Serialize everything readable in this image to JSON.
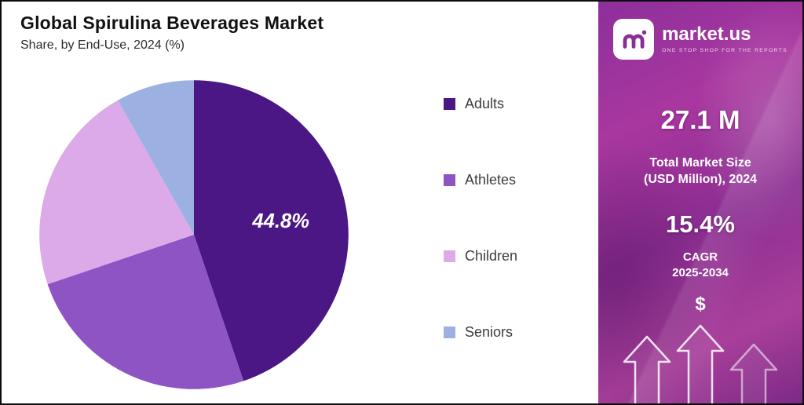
{
  "header": {
    "title": "Global Spirulina Beverages Market",
    "subtitle": "Share, by End-Use, 2024 (%)"
  },
  "chart_data": {
    "type": "pie",
    "title": "Global Spirulina Beverages Market",
    "subtitle": "Share, by End-Use, 2024 (%)",
    "legend_position": "right",
    "slices": [
      {
        "label": "Adults",
        "value": 44.8,
        "color": "#4a1784",
        "data_label": "44.8%"
      },
      {
        "label": "Athletes",
        "value": 25.0,
        "color": "#8e54c4"
      },
      {
        "label": "Children",
        "value": 22.0,
        "color": "#dcaae8"
      },
      {
        "label": "Seniors",
        "value": 8.2,
        "color": "#9cb1e2"
      }
    ]
  },
  "sidebar": {
    "brand": {
      "name": "market.us",
      "tagline": "ONE STOP SHOP FOR THE REPORTS"
    },
    "stats": [
      {
        "value": "27.1 M",
        "caption_lines": [
          "Total Market Size",
          "(USD Million), 2024"
        ]
      },
      {
        "value": "15.4%",
        "caption_lines": [
          "CAGR",
          "2025-2034"
        ]
      }
    ],
    "dollar_symbol": "$"
  }
}
